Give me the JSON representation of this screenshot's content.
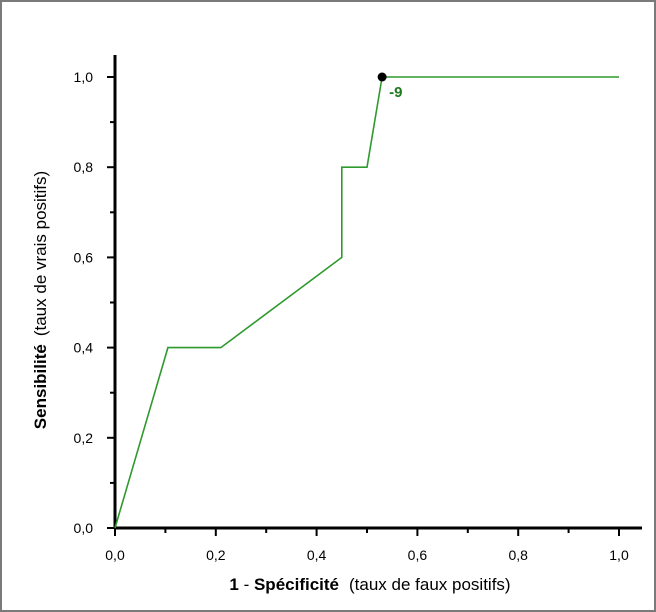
{
  "chart_data": {
    "type": "line",
    "xlabel_bold": "1",
    "xlabel_sep": " - ",
    "xlabel_bold2": "Spécificité",
    "xlabel_rest": "(taux de faux positifs)",
    "ylabel_bold": "Sensibilité",
    "ylabel_rest": "(taux de vrais positifs)",
    "xlim": [
      0,
      1
    ],
    "ylim": [
      0,
      1
    ],
    "x_ticks": [
      "0,0",
      "0,2",
      "0,4",
      "0,6",
      "0,8",
      "1,0"
    ],
    "y_ticks": [
      "0,0",
      "0,2",
      "0,4",
      "0,6",
      "0,8",
      "1,0"
    ],
    "grid": false,
    "legend": "none",
    "series": [
      {
        "color": "#2e9a2e",
        "x": [
          0,
          0.105,
          0.21,
          0.45,
          0.45,
          0.5,
          0.53,
          1.0
        ],
        "y": [
          0,
          0.4,
          0.4,
          0.6,
          0.8,
          0.8,
          1.0,
          1.0
        ]
      }
    ],
    "marker": {
      "x": 0.53,
      "y": 1.0,
      "label": "-9",
      "label_color": "#1e7a1e"
    }
  }
}
